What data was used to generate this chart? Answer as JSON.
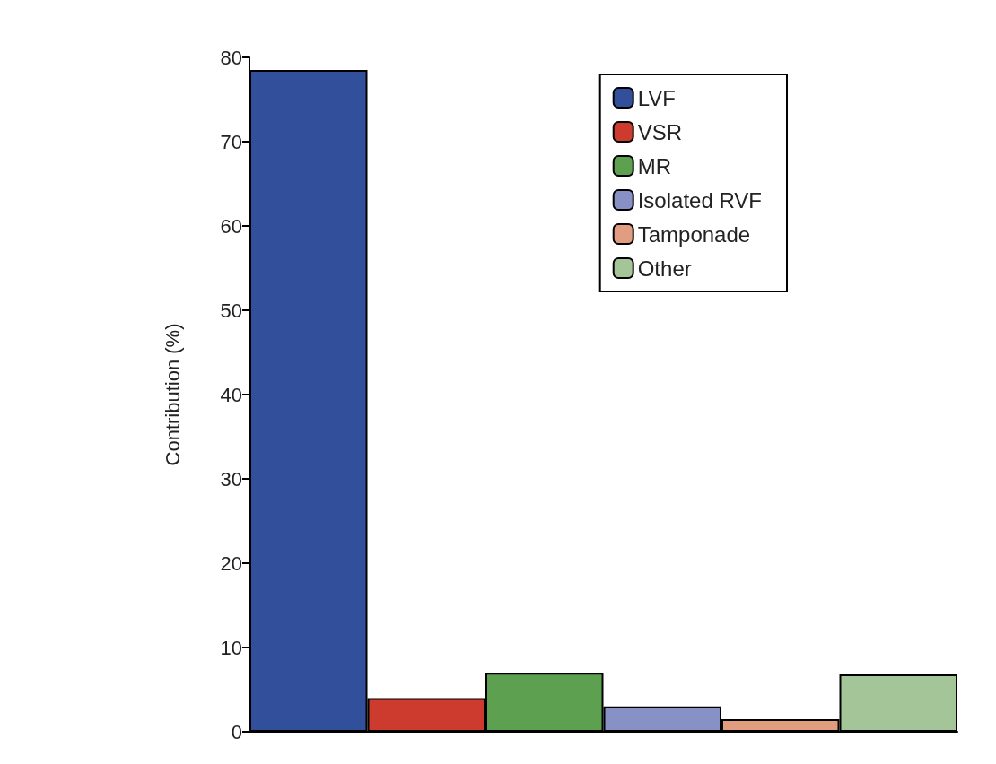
{
  "chart_data": {
    "type": "bar",
    "ylabel": "Contribution (%)",
    "categories": [
      null,
      null,
      null,
      null,
      null,
      null
    ],
    "stacked": true,
    "series": [
      {
        "name": "LVF",
        "color": "#324f9c",
        "values": [
          78.5,
          null,
          null,
          null,
          null,
          null
        ]
      },
      {
        "name": "VSR",
        "color": "#cd3b2e",
        "values": [
          null,
          4,
          null,
          null,
          null,
          null
        ]
      },
      {
        "name": "MR",
        "color": "#5da050",
        "values": [
          null,
          null,
          7,
          null,
          null,
          null
        ]
      },
      {
        "name": "Isolated RVF",
        "color": "#8791c5",
        "values": [
          null,
          null,
          null,
          3,
          null,
          null
        ]
      },
      {
        "name": "Tamponade",
        "color": "#e29d80",
        "values": [
          null,
          null,
          null,
          null,
          1.5,
          null
        ]
      },
      {
        "name": "Other",
        "color": "#a4c597",
        "values": [
          null,
          null,
          null,
          null,
          null,
          6.8
        ]
      }
    ],
    "ylim": [
      0,
      80
    ],
    "yticks": [
      0,
      10,
      20,
      30,
      40,
      50,
      60,
      70,
      80
    ],
    "grid": false,
    "legend": "top right"
  }
}
